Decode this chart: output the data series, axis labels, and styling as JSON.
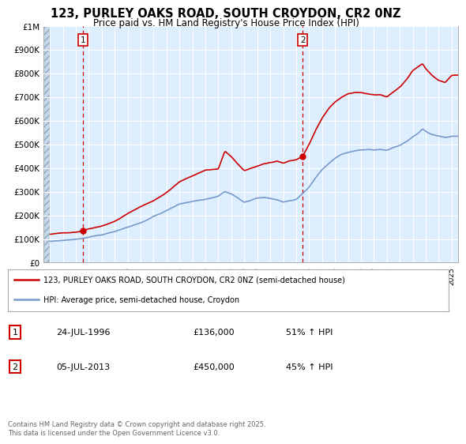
{
  "title": "123, PURLEY OAKS ROAD, SOUTH CROYDON, CR2 0NZ",
  "subtitle": "Price paid vs. HM Land Registry's House Price Index (HPI)",
  "background_color": "#ffffff",
  "plot_bg_color": "#ddeeff",
  "grid_color": "#ffffff",
  "red_line_color": "#cc0000",
  "blue_line_color": "#7799cc",
  "ylim": [
    0,
    1000000
  ],
  "ytick_labels": [
    "£0",
    "£100K",
    "£200K",
    "£300K",
    "£400K",
    "£500K",
    "£600K",
    "£700K",
    "£800K",
    "£900K",
    "£1M"
  ],
  "xlim_start": 1993.5,
  "xlim_end": 2025.5,
  "xticks": [
    1994,
    1995,
    1996,
    1997,
    1998,
    1999,
    2000,
    2001,
    2002,
    2003,
    2004,
    2005,
    2006,
    2007,
    2008,
    2009,
    2010,
    2011,
    2012,
    2013,
    2014,
    2015,
    2016,
    2017,
    2018,
    2019,
    2020,
    2021,
    2022,
    2023,
    2024,
    2025
  ],
  "sale1_x": 1996.56,
  "sale1_y": 136000,
  "sale1_label": "1",
  "sale1_date": "24-JUL-1996",
  "sale1_price": "£136,000",
  "sale1_hpi": "51% ↑ HPI",
  "sale2_x": 2013.51,
  "sale2_y": 450000,
  "sale2_label": "2",
  "sale2_date": "05-JUL-2013",
  "sale2_price": "£450,000",
  "sale2_hpi": "45% ↑ HPI",
  "legend_line1": "123, PURLEY OAKS ROAD, SOUTH CROYDON, CR2 0NZ (semi-detached house)",
  "legend_line2": "HPI: Average price, semi-detached house, Croydon",
  "footer": "Contains HM Land Registry data © Crown copyright and database right 2025.\nThis data is licensed under the Open Government Licence v3.0."
}
